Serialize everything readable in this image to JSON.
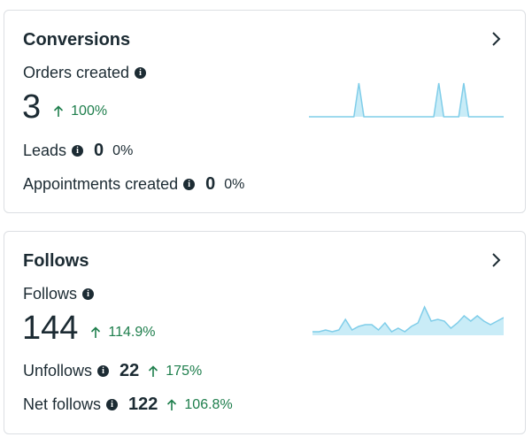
{
  "colors": {
    "text": "#1c2b33",
    "positive": "#1e7e4c",
    "spark_line": "#7fcde9",
    "spark_fill": "#c9ecf7",
    "border": "#dcdfe3"
  },
  "conversions": {
    "title": "Conversions",
    "orders_label": "Orders created",
    "orders_value": "3",
    "orders_change": "100%",
    "leads_label": "Leads",
    "leads_value": "0",
    "leads_change": "0%",
    "appointments_label": "Appointments created",
    "appointments_value": "0",
    "appointments_change": "0%",
    "sparkline": [
      0,
      0,
      0,
      0,
      0,
      0,
      0,
      0,
      0,
      0,
      1,
      0,
      0,
      0,
      0,
      0,
      0,
      0,
      0,
      0,
      0,
      0,
      0,
      0,
      0,
      0,
      1,
      0,
      0,
      0,
      0,
      1,
      0,
      0,
      0,
      0,
      0,
      0,
      0,
      0
    ]
  },
  "follows": {
    "title": "Follows",
    "follows_label": "Follows",
    "follows_value": "144",
    "follows_change": "114.9%",
    "unfollows_label": "Unfollows",
    "unfollows_value": "22",
    "unfollows_change": "175%",
    "net_label": "Net follows",
    "net_value": "122",
    "net_change": "106.8%",
    "sparkline": [
      2,
      2,
      3,
      2,
      3,
      9,
      3,
      5,
      6,
      6,
      3,
      7,
      2,
      4,
      2,
      5,
      7,
      16,
      8,
      9,
      8,
      4,
      7,
      11,
      8,
      11,
      8,
      6,
      8,
      10
    ]
  }
}
